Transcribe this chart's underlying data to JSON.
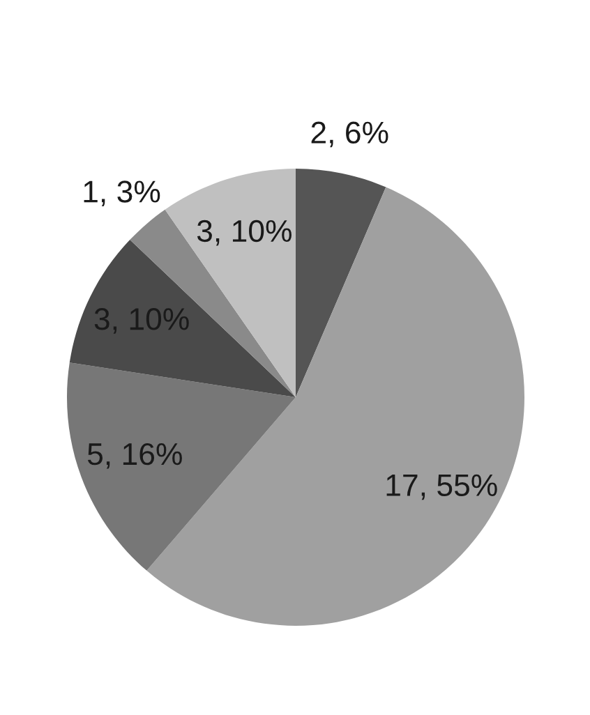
{
  "chart_data": {
    "type": "pie",
    "categories": [
      null,
      null,
      null,
      null,
      null,
      null
    ],
    "values": [
      2,
      17,
      5,
      3,
      1,
      3
    ],
    "colors": [
      "#555555",
      "#a0a0a0",
      "#777777",
      "#4a4a4a",
      "#8a8a8a",
      "#c0c0c0"
    ],
    "value_labels": [
      "2, 6%",
      "17, 55%",
      "5, 16%",
      "3, 10%",
      "1, 3%",
      "3, 10%"
    ]
  }
}
